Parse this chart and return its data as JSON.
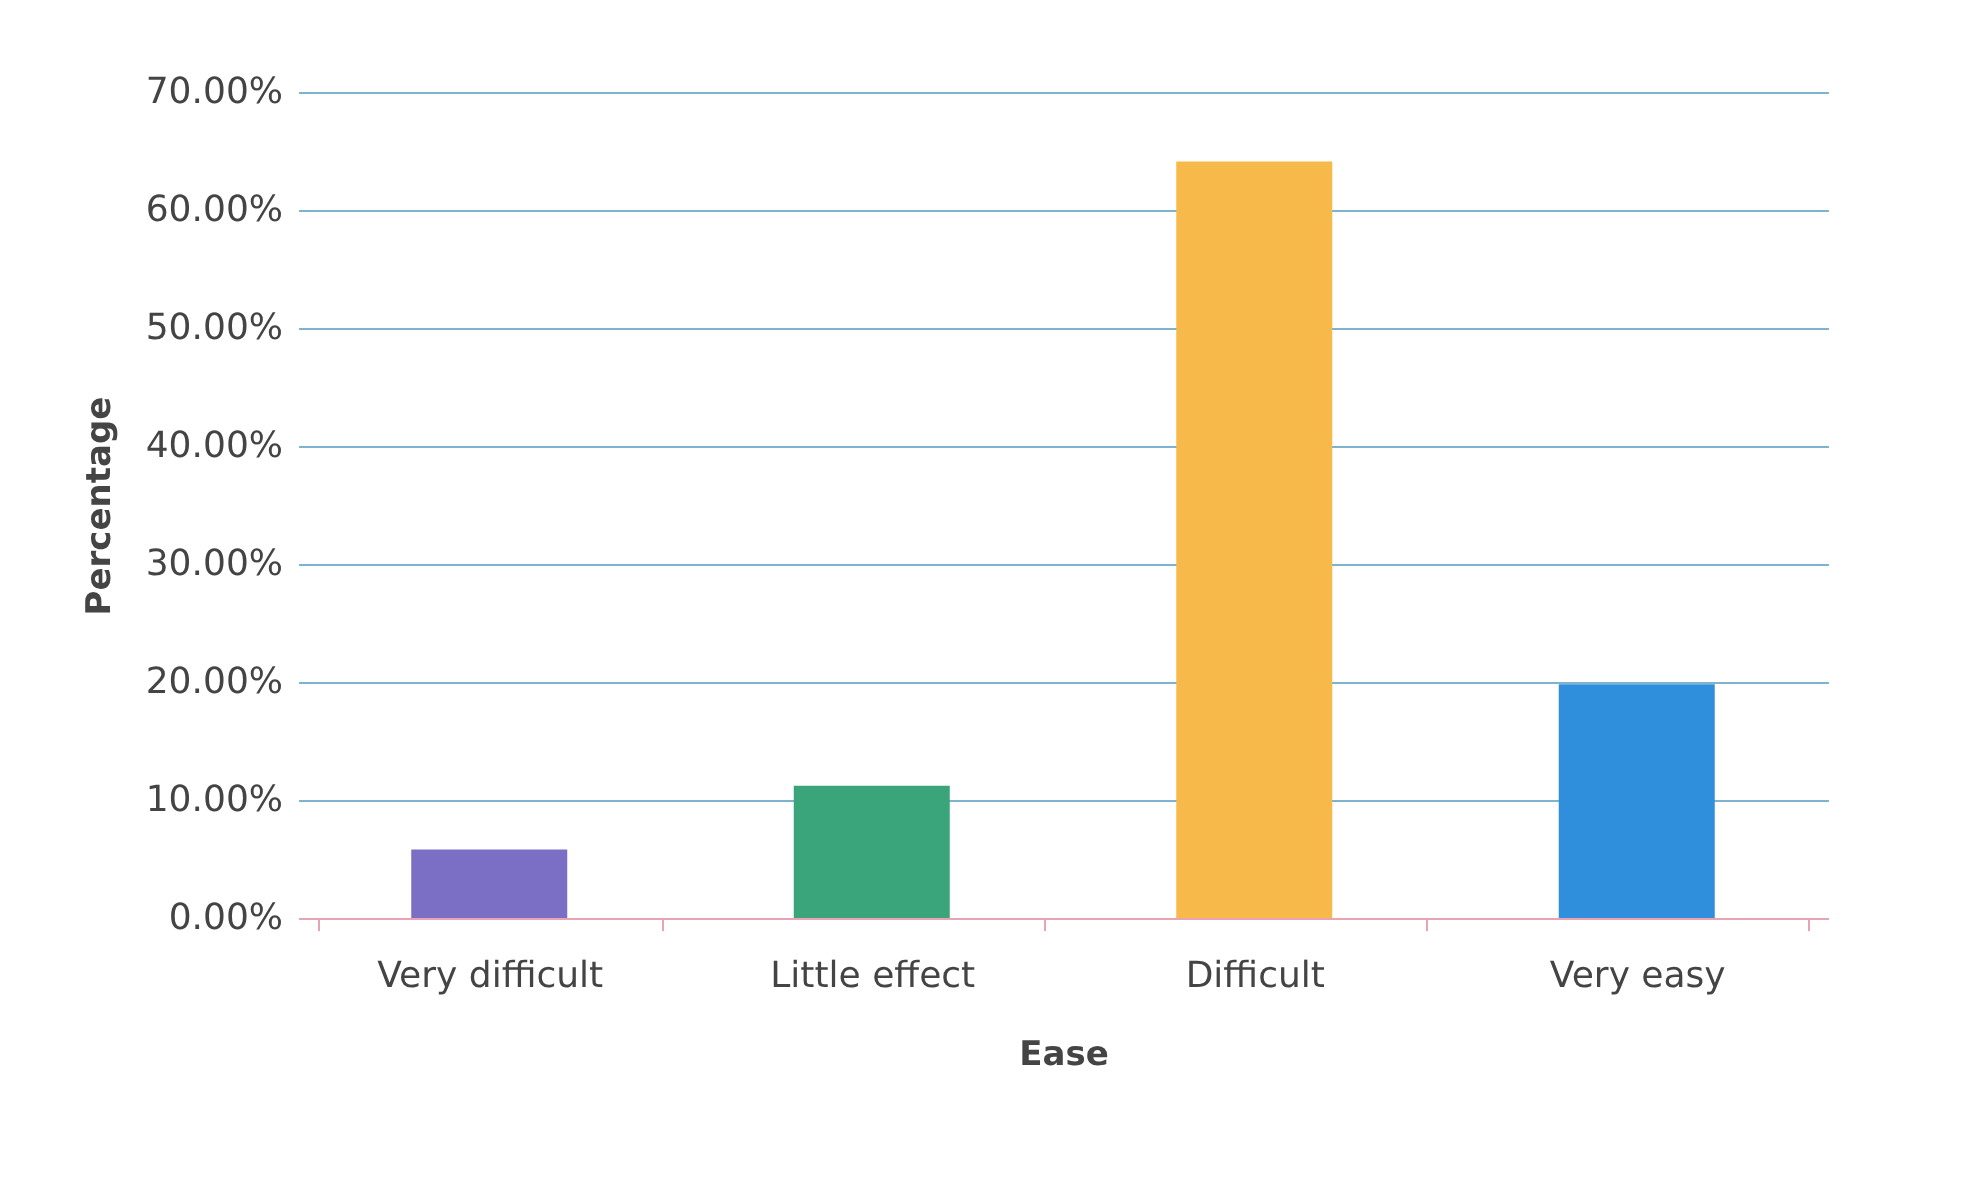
{
  "chart_data": {
    "type": "bar",
    "xlabel": "Ease",
    "ylabel": "Percentage",
    "categories": [
      "Very difficult",
      "Little effect",
      "Difficult",
      "Very easy"
    ],
    "values": [
      5.8,
      11.2,
      64.1,
      19.8
    ],
    "colors": [
      "#7a6fc4",
      "#3aa57a",
      "#f7b94a",
      "#2f8fdc"
    ],
    "ylim": [
      0,
      70
    ],
    "yticks": [
      {
        "value": 0,
        "label": "0.00%"
      },
      {
        "value": 10,
        "label": "10.00%"
      },
      {
        "value": 20,
        "label": "20.00%"
      },
      {
        "value": 30,
        "label": "30.00%"
      },
      {
        "value": 40,
        "label": "40.00%"
      },
      {
        "value": 50,
        "label": "50.00%"
      },
      {
        "value": 60,
        "label": "60.00%"
      },
      {
        "value": 70,
        "label": "70.00%"
      }
    ],
    "grid": "y"
  }
}
